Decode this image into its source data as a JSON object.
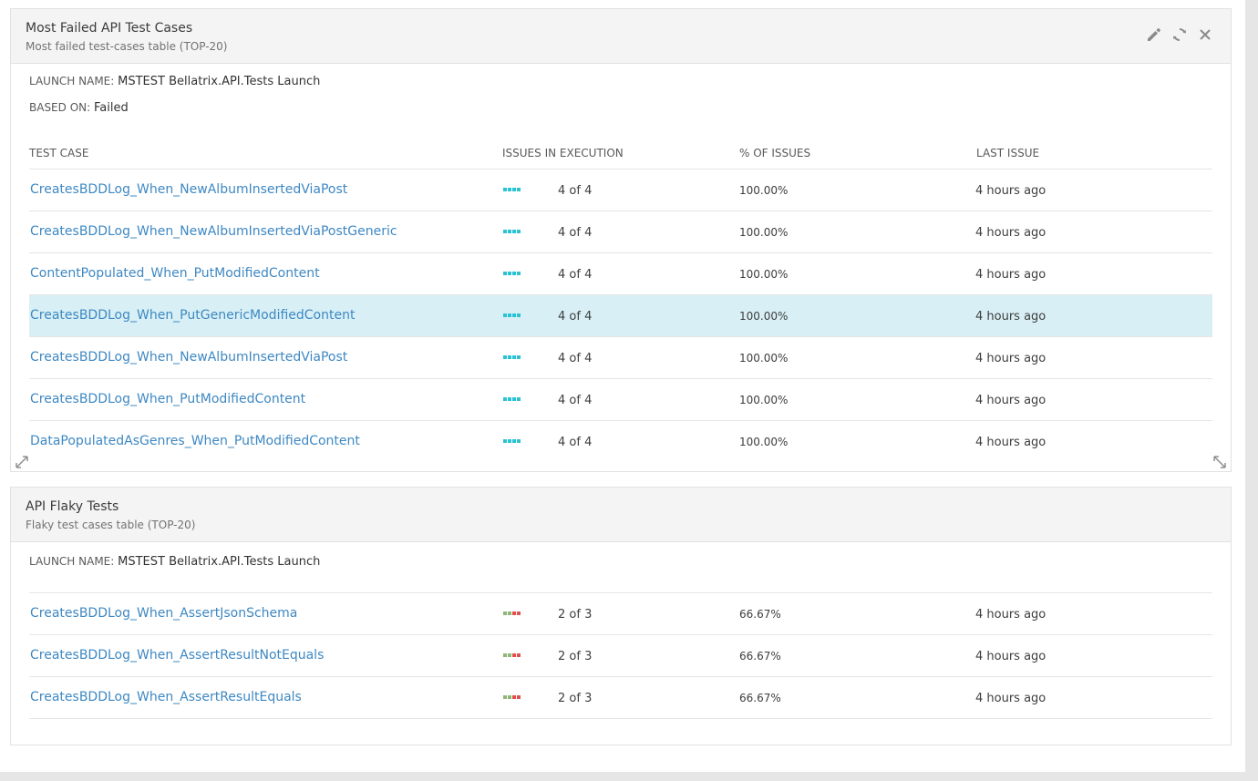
{
  "widgets": [
    {
      "title": "Most Failed API Test Cases",
      "description": "Most failed test-cases table (TOP-20)",
      "launch_label": "LAUNCH NAME:",
      "launch_value": "MSTEST Bellatrix.API.Tests Launch",
      "based_label": "BASED ON:",
      "based_value": "Failed",
      "columns": [
        "TEST CASE",
        "ISSUES IN EXECUTION",
        "% OF ISSUES",
        "LAST ISSUE"
      ],
      "rows": [
        {
          "name": "CreatesBDDLog_When_NewAlbumInsertedViaPost",
          "count": "4 of 4",
          "pct": "100.00%",
          "last": "4 hours ago"
        },
        {
          "name": "CreatesBDDLog_When_NewAlbumInsertedViaPostGeneric",
          "count": "4 of 4",
          "pct": "100.00%",
          "last": "4 hours ago"
        },
        {
          "name": "ContentPopulated_When_PutModifiedContent",
          "count": "4 of 4",
          "pct": "100.00%",
          "last": "4 hours ago"
        },
        {
          "name": "CreatesBDDLog_When_PutGenericModifiedContent",
          "count": "4 of 4",
          "pct": "100.00%",
          "last": "4 hours ago"
        },
        {
          "name": "CreatesBDDLog_When_NewAlbumInsertedViaPost",
          "count": "4 of 4",
          "pct": "100.00%",
          "last": "4 hours ago"
        },
        {
          "name": "CreatesBDDLog_When_PutModifiedContent",
          "count": "4 of 4",
          "pct": "100.00%",
          "last": "4 hours ago"
        },
        {
          "name": "DataPopulatedAsGenres_When_PutModifiedContent",
          "count": "4 of 4",
          "pct": "100.00%",
          "last": "4 hours ago"
        }
      ]
    },
    {
      "title": "API Flaky Tests",
      "description": "Flaky test cases table (TOP-20)",
      "launch_label": "LAUNCH NAME:",
      "launch_value": "MSTEST Bellatrix.API.Tests Launch",
      "rows": [
        {
          "name": "CreatesBDDLog_When_AssertJsonSchema",
          "count": "2 of 3",
          "pct": "66.67%",
          "last": "4 hours ago"
        },
        {
          "name": "CreatesBDDLog_When_AssertResultNotEquals",
          "count": "2 of 3",
          "pct": "66.67%",
          "last": "4 hours ago"
        },
        {
          "name": "CreatesBDDLog_When_AssertResultEquals",
          "count": "2 of 3",
          "pct": "66.67%",
          "last": "4 hours ago"
        }
      ]
    }
  ],
  "colors": {
    "failed_bar": "#2bc2d3",
    "passed_bar": "#8db677",
    "flaky_bar": "#e0504f",
    "link": "#3e88c2",
    "highlight_row": "#d8f0f5"
  },
  "icons": [
    "pencil-icon",
    "refresh-icon",
    "close-icon",
    "resize-left-icon",
    "resize-right-icon"
  ]
}
